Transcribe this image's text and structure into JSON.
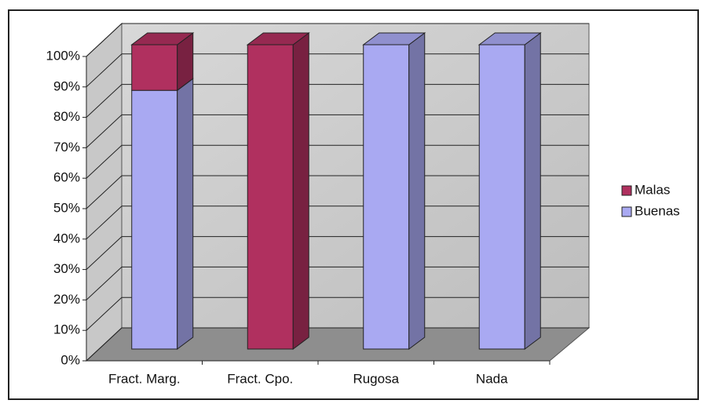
{
  "chart_data": {
    "type": "bar",
    "stacked": true,
    "categories": [
      "Fract. Marg.",
      "Fract. Cpo.",
      "Rugosa",
      "Nada"
    ],
    "series": [
      {
        "name": "Malas",
        "color": "#b0305f",
        "values": [
          15,
          100,
          0,
          0
        ]
      },
      {
        "name": "Buenas",
        "color": "#a9a9f2",
        "values": [
          85,
          0,
          100,
          100
        ]
      }
    ],
    "ylim": [
      0,
      100
    ],
    "yticks": [
      {
        "value": 0,
        "label": "0%"
      },
      {
        "value": 10,
        "label": "10%"
      },
      {
        "value": 20,
        "label": "20%"
      },
      {
        "value": 30,
        "label": "30%"
      },
      {
        "value": 40,
        "label": "40%"
      },
      {
        "value": 50,
        "label": "50%"
      },
      {
        "value": 60,
        "label": "60%"
      },
      {
        "value": 70,
        "label": "70%"
      },
      {
        "value": 80,
        "label": "80%"
      },
      {
        "value": 90,
        "label": "90%"
      },
      {
        "value": 100,
        "label": "100%"
      }
    ],
    "grid": true,
    "legend": "right"
  }
}
